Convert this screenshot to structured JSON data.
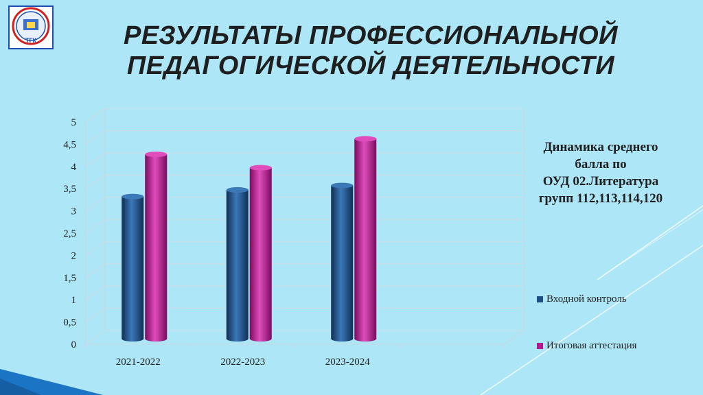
{
  "slide": {
    "title_lines": [
      "РЕЗУЛЬТАТЫ ПРОФЕССИОНАЛЬНОЙ",
      "ПЕДАГОГИЧЕСКОЙ ДЕЯТЕЛЬНОСТИ"
    ],
    "logo_text": "ТГК"
  },
  "side_text_lines": [
    "Динамика среднего",
    "балла по",
    "ОУД 02.Литература",
    "групп 112,113,114,120"
  ],
  "colors": {
    "background": "#ade6f7",
    "series1": "#1d4f86",
    "series2": "#b5178e"
  },
  "chart_data": {
    "type": "bar",
    "categories": [
      "2021-2022",
      "2022-2023",
      "2023-2024"
    ],
    "series": [
      {
        "name": "Входной контроль",
        "values": [
          3.2,
          3.35,
          3.45
        ]
      },
      {
        "name": "Итоговая аттестация",
        "values": [
          4.15,
          3.85,
          4.5
        ]
      }
    ],
    "yticks": [
      "0",
      "0,5",
      "1",
      "1,5",
      "2",
      "2,5",
      "3",
      "3,5",
      "4",
      "4,5",
      "5"
    ],
    "ylim": [
      0,
      5
    ],
    "grid": true,
    "legend_position": "right"
  }
}
